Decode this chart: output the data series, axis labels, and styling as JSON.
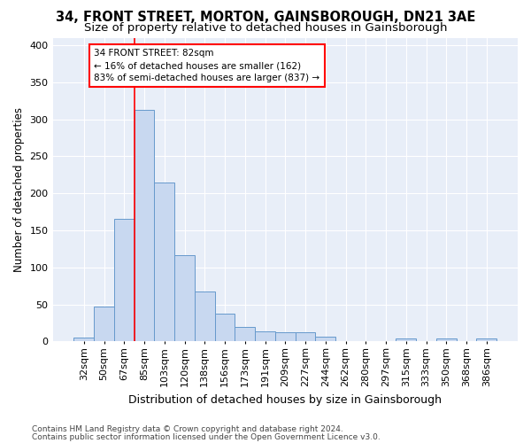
{
  "title": "34, FRONT STREET, MORTON, GAINSBOROUGH, DN21 3AE",
  "subtitle": "Size of property relative to detached houses in Gainsborough",
  "xlabel": "Distribution of detached houses by size in Gainsborough",
  "ylabel": "Number of detached properties",
  "footnote1": "Contains HM Land Registry data © Crown copyright and database right 2024.",
  "footnote2": "Contains public sector information licensed under the Open Government Licence v3.0.",
  "bins": [
    "32sqm",
    "50sqm",
    "67sqm",
    "85sqm",
    "103sqm",
    "120sqm",
    "138sqm",
    "156sqm",
    "173sqm",
    "191sqm",
    "209sqm",
    "227sqm",
    "244sqm",
    "262sqm",
    "280sqm",
    "297sqm",
    "315sqm",
    "333sqm",
    "350sqm",
    "368sqm",
    "386sqm"
  ],
  "values": [
    5,
    47,
    165,
    312,
    215,
    117,
    68,
    38,
    20,
    14,
    12,
    12,
    7,
    0,
    0,
    0,
    4,
    0,
    4,
    0,
    4
  ],
  "bar_color": "#c8d8f0",
  "bar_edge_color": "#6699cc",
  "red_line_color": "red",
  "annotation_line1": "34 FRONT STREET: 82sqm",
  "annotation_line2": "← 16% of detached houses are smaller (162)",
  "annotation_line3": "83% of semi-detached houses are larger (837) →",
  "ylim": [
    0,
    410
  ],
  "yticks": [
    0,
    50,
    100,
    150,
    200,
    250,
    300,
    350,
    400
  ],
  "background_color": "#e8eef8",
  "grid_color": "white",
  "title_fontsize": 10.5,
  "subtitle_fontsize": 9.5,
  "tick_fontsize": 8,
  "ylabel_fontsize": 8.5,
  "xlabel_fontsize": 9,
  "footnote_fontsize": 6.5,
  "red_line_bar_index": 3
}
